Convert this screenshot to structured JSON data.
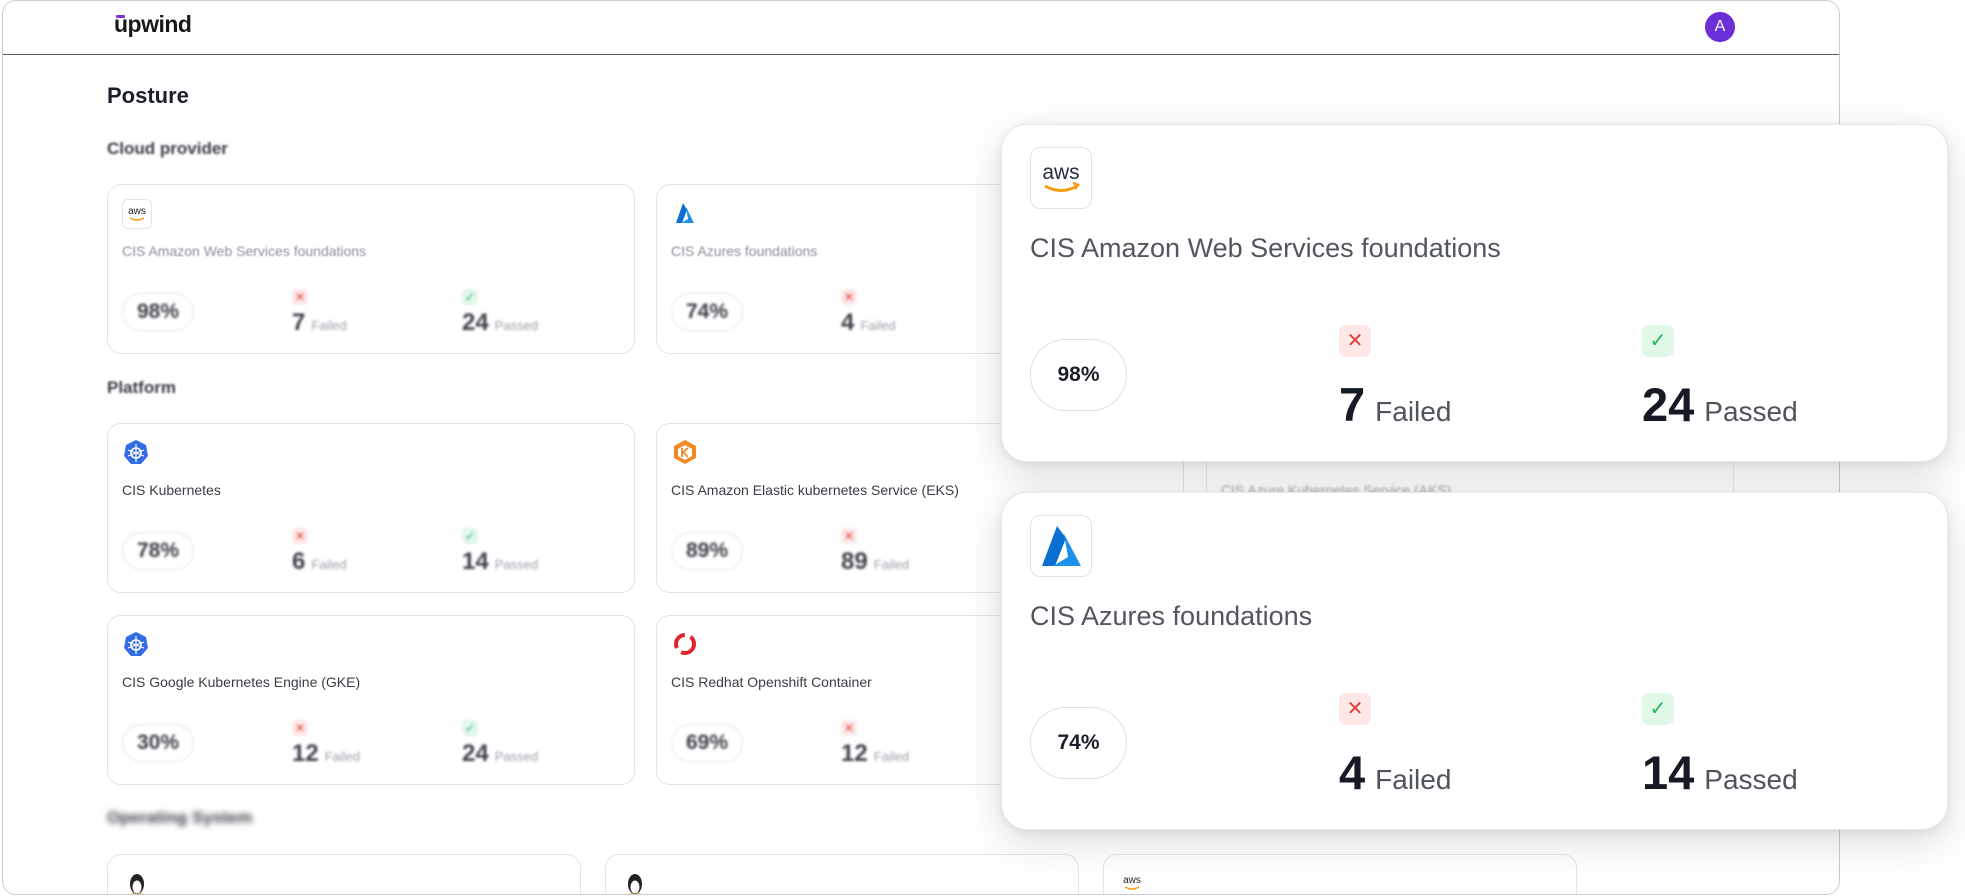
{
  "app": {
    "logo": "upwind",
    "avatar_initial": "A",
    "brand_color": "#6a2fd6"
  },
  "page_title": "Posture",
  "sections": {
    "cloud_provider": "Cloud provider",
    "platform": "Platform",
    "operating_system": "Operating System"
  },
  "cards": {
    "aws": {
      "icon": "aws-logo-icon",
      "name": "CIS Amazon Web Services foundations",
      "percent": "98%",
      "failed": "7",
      "failed_label": "Failed",
      "passed": "24",
      "passed_label": "Passed"
    },
    "azure": {
      "icon": "azure-logo-icon",
      "name": "CIS Azures foundations",
      "percent": "74%",
      "failed": "4",
      "failed_label": "Failed"
    },
    "k8s": {
      "icon": "kubernetes-icon",
      "name": "CIS Kubernetes",
      "percent": "78%",
      "failed": "6",
      "failed_label": "Failed",
      "passed": "14",
      "passed_label": "Passed"
    },
    "eks": {
      "icon": "eks-icon",
      "name": "CIS Amazon Elastic kubernetes Service (EKS)",
      "percent": "89%",
      "failed": "89",
      "failed_label": "Failed"
    },
    "gke": {
      "icon": "kubernetes-icon",
      "name": "CIS Google Kubernetes Engine (GKE)",
      "percent": "30%",
      "failed": "12",
      "failed_label": "Failed",
      "passed": "24",
      "passed_label": "Passed"
    },
    "openshift": {
      "icon": "openshift-icon",
      "name": "CIS Redhat Openshift Container",
      "percent": "69%",
      "failed": "12",
      "failed_label": "Failed"
    },
    "aks_partial": {
      "name": "CIS Azure Kubernetes Service (AKS)"
    }
  },
  "overlays": {
    "aws": {
      "icon": "aws-logo-icon",
      "name": "CIS Amazon Web Services foundations",
      "percent": "98%",
      "failed": "7",
      "failed_label": "Failed",
      "passed": "24",
      "passed_label": "Passed"
    },
    "azure": {
      "icon": "azure-logo-icon",
      "name": "CIS Azures foundations",
      "percent": "74%",
      "failed": "4",
      "failed_label": "Failed",
      "passed": "14",
      "passed_label": "Passed"
    }
  },
  "glyphs": {
    "fail": "✕",
    "pass": "✓",
    "aws_text": "aws"
  },
  "colors": {
    "fail": "#e0413d",
    "pass": "#22b35e",
    "azure": "#0a6fd1",
    "kubernetes": "#326ce5",
    "openshift": "#e0262d",
    "eks": "#f08a24"
  }
}
